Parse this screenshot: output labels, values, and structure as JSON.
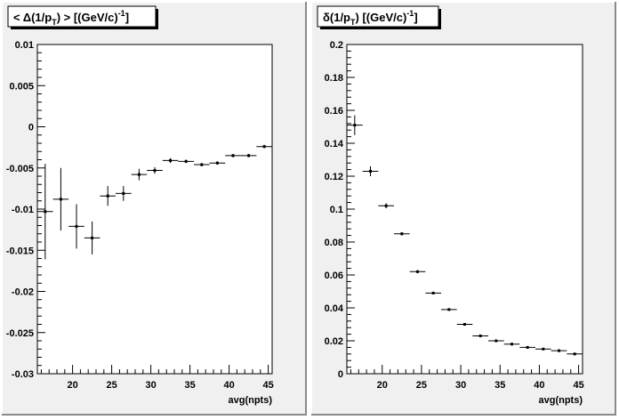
{
  "chart_data": [
    {
      "type": "scatter",
      "title": "< Δ(1/p_T) >  [(GeV/c)^-1]",
      "title_parts": {
        "pre": "< Δ(1/p",
        "sub": "T",
        "mid": ") >  [(GeV/c)",
        "sup": "-1",
        "post": "]"
      },
      "xlabel": "avg(npts)",
      "xlim": [
        15.5,
        45.5
      ],
      "ylim": [
        -0.03,
        0.01
      ],
      "x_ticks": [
        20,
        25,
        30,
        35,
        40,
        45
      ],
      "x_tick_labels": [
        "20",
        "25",
        "30",
        "35",
        "40",
        "45"
      ],
      "y_ticks": [
        -0.03,
        -0.025,
        -0.02,
        -0.015,
        -0.01,
        -0.005,
        0,
        0.005,
        0.01
      ],
      "y_tick_labels": [
        "-0.03",
        "-0.025",
        "-0.02",
        "-0.015",
        "-0.01",
        "-0.005",
        "0",
        "0.005",
        "0.01"
      ],
      "x": [
        16.5,
        18.5,
        20.5,
        22.5,
        24.5,
        26.5,
        28.5,
        30.5,
        32.5,
        34.5,
        36.5,
        38.5,
        40.5,
        42.5,
        44.5
      ],
      "y": [
        -0.0103,
        -0.0088,
        -0.0121,
        -0.0135,
        -0.0084,
        -0.0081,
        -0.0058,
        -0.0053,
        -0.0041,
        -0.0042,
        -0.0046,
        -0.0044,
        -0.0035,
        -0.0035,
        -0.0024
      ],
      "x_err": 1.0,
      "y_err": [
        0.0058,
        0.0038,
        0.0027,
        0.002,
        0.0012,
        0.0009,
        0.0007,
        0.0004,
        0.0003,
        0.0002,
        0.0002,
        0.0002,
        0.0002,
        0.0002,
        0.0002
      ],
      "grid": false
    },
    {
      "type": "scatter",
      "title": "δ(1/p_T)  [(GeV/c)^-1]",
      "title_parts": {
        "pre": "δ(1/p",
        "sub": "T",
        "mid": ")  [(GeV/c)",
        "sup": "-1",
        "post": "]"
      },
      "xlabel": "avg(npts)",
      "xlim": [
        15.5,
        45.5
      ],
      "ylim": [
        0,
        0.2
      ],
      "x_ticks": [
        20,
        25,
        30,
        35,
        40,
        45
      ],
      "x_tick_labels": [
        "20",
        "25",
        "30",
        "35",
        "40",
        "45"
      ],
      "y_ticks": [
        0,
        0.02,
        0.04,
        0.06,
        0.08,
        0.1,
        0.12,
        0.14,
        0.16,
        0.18,
        0.2
      ],
      "y_tick_labels": [
        "0",
        "0.02",
        "0.04",
        "0.06",
        "0.08",
        "0.1",
        "0.12",
        "0.14",
        "0.16",
        "0.18",
        "0.2"
      ],
      "x": [
        16.5,
        18.5,
        20.5,
        22.5,
        24.5,
        26.5,
        28.5,
        30.5,
        32.5,
        34.5,
        36.5,
        38.5,
        40.5,
        42.5,
        44.5
      ],
      "y": [
        0.151,
        0.123,
        0.102,
        0.085,
        0.062,
        0.049,
        0.039,
        0.03,
        0.023,
        0.02,
        0.018,
        0.016,
        0.015,
        0.014,
        0.012
      ],
      "x_err": 1.0,
      "y_err": [
        0.006,
        0.003,
        0.0015,
        0.001,
        0.0008,
        0.0006,
        0.0005,
        0.0004,
        0.0003,
        0.0003,
        0.0003,
        0.0002,
        0.0002,
        0.0002,
        0.0002
      ],
      "grid": false
    }
  ]
}
